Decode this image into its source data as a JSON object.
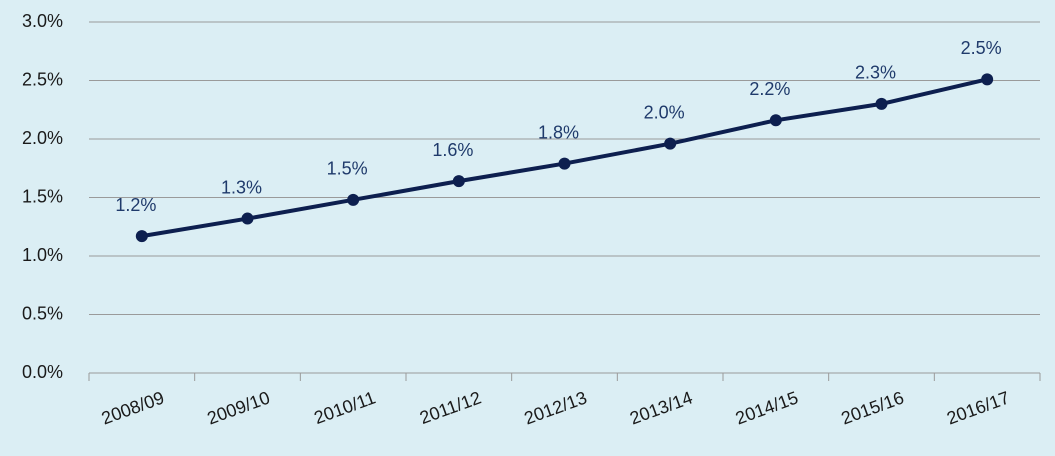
{
  "chart_data": {
    "type": "line",
    "categories": [
      "2008/09",
      "2009/10",
      "2010/11",
      "2011/12",
      "2012/13",
      "2013/14",
      "2014/15",
      "2015/16",
      "2016/17"
    ],
    "values": [
      1.17,
      1.32,
      1.48,
      1.64,
      1.79,
      1.96,
      2.16,
      2.3,
      2.51
    ],
    "value_labels": [
      "1.2%",
      "1.3%",
      "1.5%",
      "1.6%",
      "1.8%",
      "2.0%",
      "2.2%",
      "2.3%",
      "2.5%"
    ],
    "color": "#0d1f4f",
    "ylim": [
      0,
      3
    ],
    "yticks": [
      {
        "value": 0,
        "label": "0.0%"
      },
      {
        "value": 0.5,
        "label": "0.5%"
      },
      {
        "value": 1,
        "label": "1.0%"
      },
      {
        "value": 1.5,
        "label": "1.5%"
      },
      {
        "value": 2,
        "label": "2.0%"
      },
      {
        "value": 2.5,
        "label": "2.5%"
      },
      {
        "value": 3,
        "label": "3.0%"
      }
    ],
    "grid": true
  }
}
